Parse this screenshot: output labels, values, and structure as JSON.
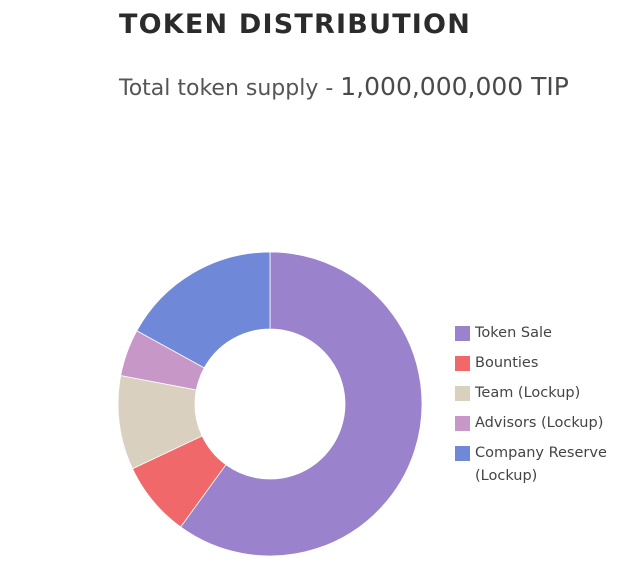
{
  "header": {
    "title": "TOKEN DISTRIBUTION",
    "subtitle_prefix": "Total token supply - ",
    "subtitle_amount": "1,000,000,000 TIP"
  },
  "chart_data": {
    "type": "pie",
    "subtype": "donut",
    "legend_position": "right",
    "series": [
      {
        "name": "Token Sale",
        "value": 60,
        "color": "#9b82cc"
      },
      {
        "name": "Bounties",
        "value": 8,
        "color": "#f0686a"
      },
      {
        "name": "Team (Lockup)",
        "value": 10,
        "color": "#d9d0bf"
      },
      {
        "name": "Advisors (Lockup)",
        "value": 5,
        "color": "#c797c7"
      },
      {
        "name": "Company Reserve (Lockup)",
        "value": 17,
        "color": "#6f88d8"
      }
    ]
  }
}
